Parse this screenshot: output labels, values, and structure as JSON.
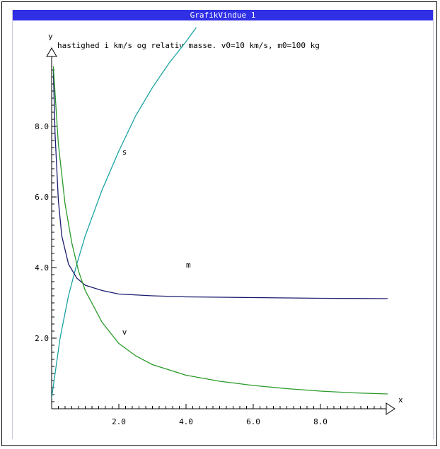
{
  "window": {
    "title": "GrafikVindue  1"
  },
  "chart_data": {
    "type": "line",
    "title": "hastighed i km/s og relativ masse. v0=10 km/s, m0=100 kg",
    "xlabel": "x",
    "ylabel": "y",
    "xlim": [
      0,
      10
    ],
    "ylim": [
      0,
      10
    ],
    "x_ticks": [
      "2.0",
      "4.0",
      "6.0",
      "8.0"
    ],
    "y_ticks": [
      "2.0",
      "4.0",
      "6.0",
      "8.0"
    ],
    "grid": false,
    "series": [
      {
        "name": "s",
        "color": "#1aa3a3",
        "x": [
          0,
          0.25,
          0.5,
          0.75,
          1.0,
          1.5,
          2.0,
          2.5,
          3.0,
          3.5,
          4.0,
          4.3
        ],
        "y": [
          0.3,
          2.0,
          3.2,
          4.1,
          4.9,
          6.2,
          7.3,
          8.3,
          9.1,
          9.8,
          10.4,
          10.8
        ]
      },
      {
        "name": "m",
        "color": "#1a1a6e",
        "x": [
          0.05,
          0.1,
          0.2,
          0.3,
          0.5,
          0.75,
          1.0,
          1.5,
          2.0,
          3.0,
          4.0,
          6.0,
          8.0,
          10.0
        ],
        "y": [
          9.6,
          7.8,
          5.9,
          4.9,
          4.1,
          3.7,
          3.5,
          3.35,
          3.25,
          3.2,
          3.17,
          3.15,
          3.13,
          3.12
        ]
      },
      {
        "name": "v",
        "color": "#2a9a2a",
        "x": [
          0.05,
          0.2,
          0.4,
          0.6,
          0.8,
          1.0,
          1.5,
          2.0,
          2.5,
          3.0,
          4.0,
          5.0,
          6.0,
          7.0,
          8.0,
          9.0,
          10.0
        ],
        "y": [
          9.7,
          7.5,
          5.8,
          4.7,
          3.9,
          3.35,
          2.45,
          1.85,
          1.5,
          1.25,
          0.95,
          0.78,
          0.66,
          0.57,
          0.5,
          0.45,
          0.42
        ]
      }
    ],
    "annotations": [
      {
        "text": "s",
        "x": 2.1,
        "y": 7.2
      },
      {
        "text": "m",
        "x": 4.0,
        "y": 4.0
      },
      {
        "text": "v",
        "x": 2.1,
        "y": 2.1
      }
    ]
  }
}
